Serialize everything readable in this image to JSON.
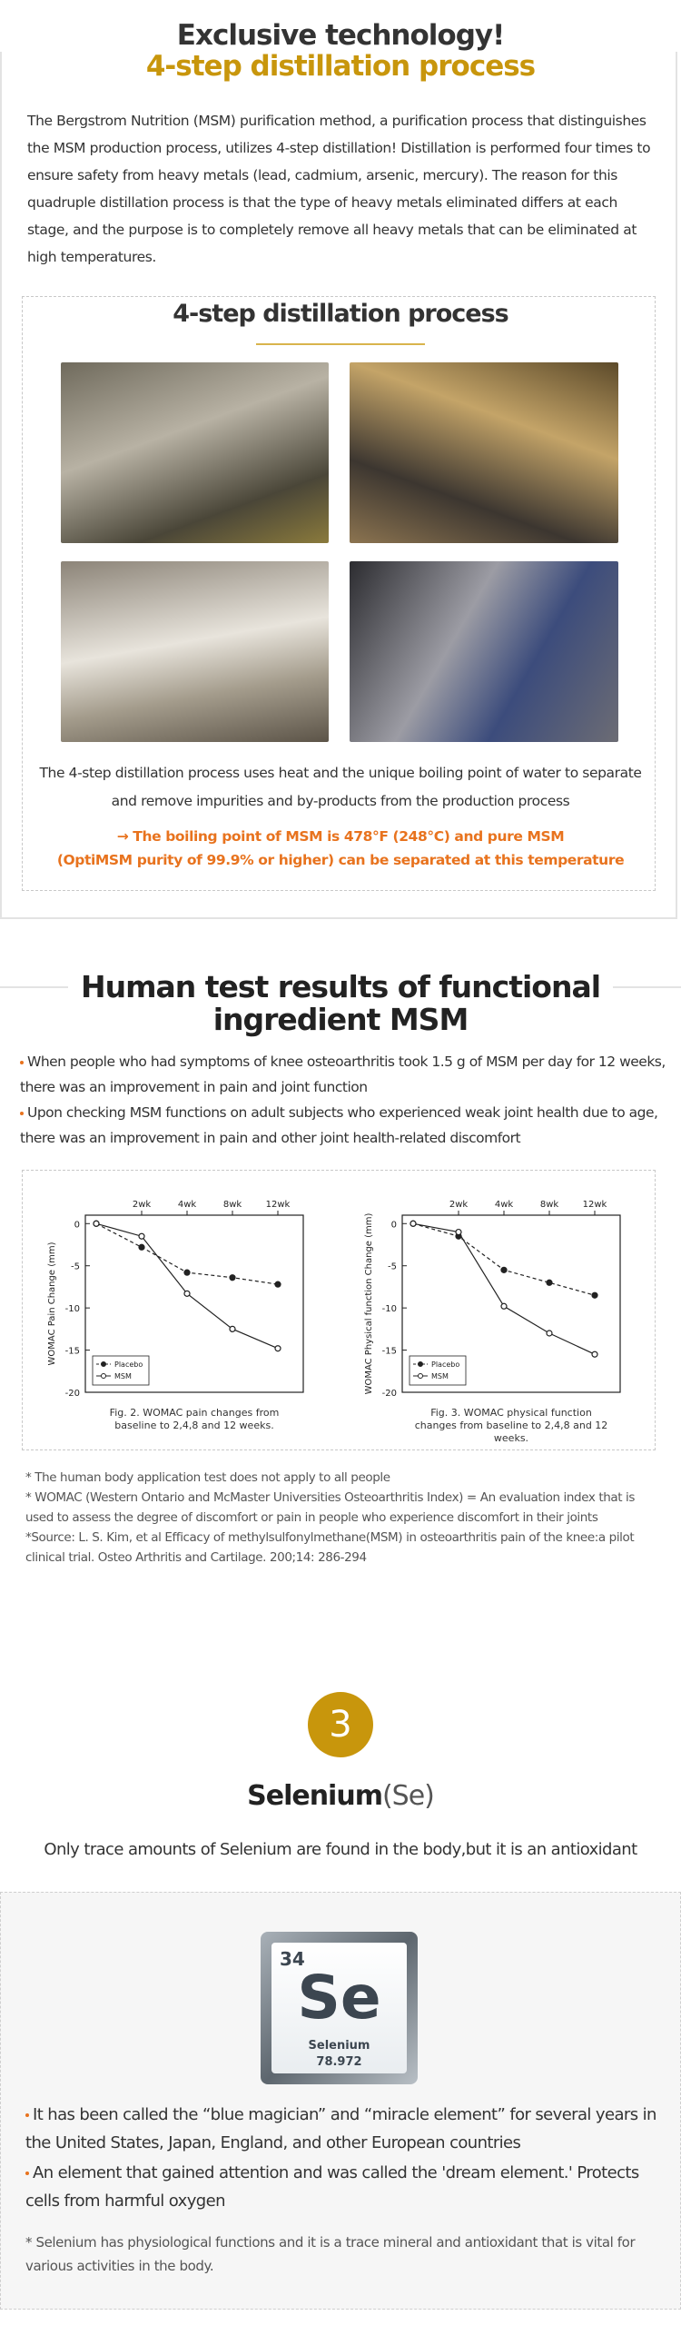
{
  "section1": {
    "title": "Exclusive technology!",
    "subtitle": "4-step distillation process",
    "paragraph": "The Bergstrom Nutrition (MSM) purification method,  a purification process that distinguishes the MSM production process, utilizes 4-step distillation! Distillation is performed four times to ensure safety from heavy metals (lead, cadmium, arsenic, mercury). The reason for this quadruple distillation process is that the type of heavy metals eliminated differs at each stage, and the purpose is to completely remove all heavy metals that can be eliminated at high temperatures.",
    "box_title": "4-step distillation process",
    "caption": "The 4-step distillation process uses heat and the unique boiling point of water to separate and remove impurities and by-products from the production process",
    "highlight": [
      "→ The boiling point of MSM is 478°F (248°C) and pure MSM",
      "(OptiMSM purity of 99.9% or higher) can be separated at this temperature"
    ]
  },
  "section2": {
    "title": [
      "Human test results of functional",
      "ingredient MSM"
    ],
    "bullets": [
      "When people who had symptoms of knee osteoarthritis took 1.5 g of MSM per day for 12 weeks, there was an improvement in pain and joint function",
      "Upon checking MSM functions on adult subjects who experienced weak joint health due to age, there was an improvement in pain and other joint health-related discomfort"
    ],
    "charts": [
      {
        "type": "line",
        "ylabel": "WOMAC Pain Change (mm)",
        "caption": "Fig. 2. WOMAC pain changes from baseline to 2,4,8 and 12 weeks.",
        "categories": [
          null,
          "2wk",
          "4wk",
          "8wk",
          "12wk"
        ],
        "ylim": [
          -20,
          1
        ],
        "yticks": [
          0,
          -5,
          -10,
          -15,
          -20
        ],
        "legend": "lower left",
        "series": [
          {
            "name": "Placebo",
            "color": "#222222",
            "dashed": true,
            "marker": "filled",
            "values": [
              0,
              -2.8,
              -5.8,
              -6.4,
              -7.2
            ]
          },
          {
            "name": "MSM",
            "color": "#222222",
            "dashed": false,
            "marker": "open",
            "values": [
              0,
              -1.5,
              -8.3,
              -12.5,
              -14.8
            ]
          }
        ]
      },
      {
        "type": "line",
        "ylabel": "WOMAC Physical function Change (mm)",
        "caption": "Fig. 3. WOMAC physical function changes from baseline to 2,4,8 and 12 weeks.",
        "categories": [
          null,
          "2wk",
          "4wk",
          "8wk",
          "12wk"
        ],
        "ylim": [
          -20,
          1
        ],
        "yticks": [
          0,
          -5,
          -10,
          -15,
          -20
        ],
        "legend": "lower left",
        "series": [
          {
            "name": "Placebo",
            "color": "#222222",
            "dashed": true,
            "marker": "filled",
            "values": [
              0,
              -1.5,
              -5.5,
              -7,
              -8.5
            ]
          },
          {
            "name": "MSM",
            "color": "#222222",
            "dashed": false,
            "marker": "open",
            "values": [
              0,
              -1,
              -9.8,
              -13,
              -15.5
            ]
          }
        ]
      }
    ],
    "footnotes": [
      "* The human body application test does not apply to all people",
      "* WOMAC (Western Ontario and McMaster Universities Osteoarthritis Index) = An evaluation index that is used to assess the degree of discomfort or pain in people who experience discomfort in their joints",
      "*Source: L. S. Kim, et al Efficacy of methylsulfonylmethane(MSM) in osteoarthritis pain of the knee:a pilot clinical trial. Osteo Arthritis and Cartilage. 200;14: 286-294"
    ]
  },
  "section3": {
    "number": "3",
    "title": "Selenium",
    "symbol_paren": "(Se)",
    "subtitle": "Only trace amounts of Selenium are found in the body,but it is an antioxidant",
    "tile": {
      "atomic_number": "34",
      "symbol": "Se",
      "name": "Selenium",
      "mass": "78.972"
    },
    "bullets": [
      "It has been called the “blue magician” and “miracle element” for several years in the United States, Japan, England, and other European countries",
      "An element that gained attention and was called the 'dream element.' Protects cells from harmful oxygen"
    ],
    "footnote": "* Selenium has physiological functions and it is a trace mineral and antioxidant that is vital for various activities in the body."
  }
}
